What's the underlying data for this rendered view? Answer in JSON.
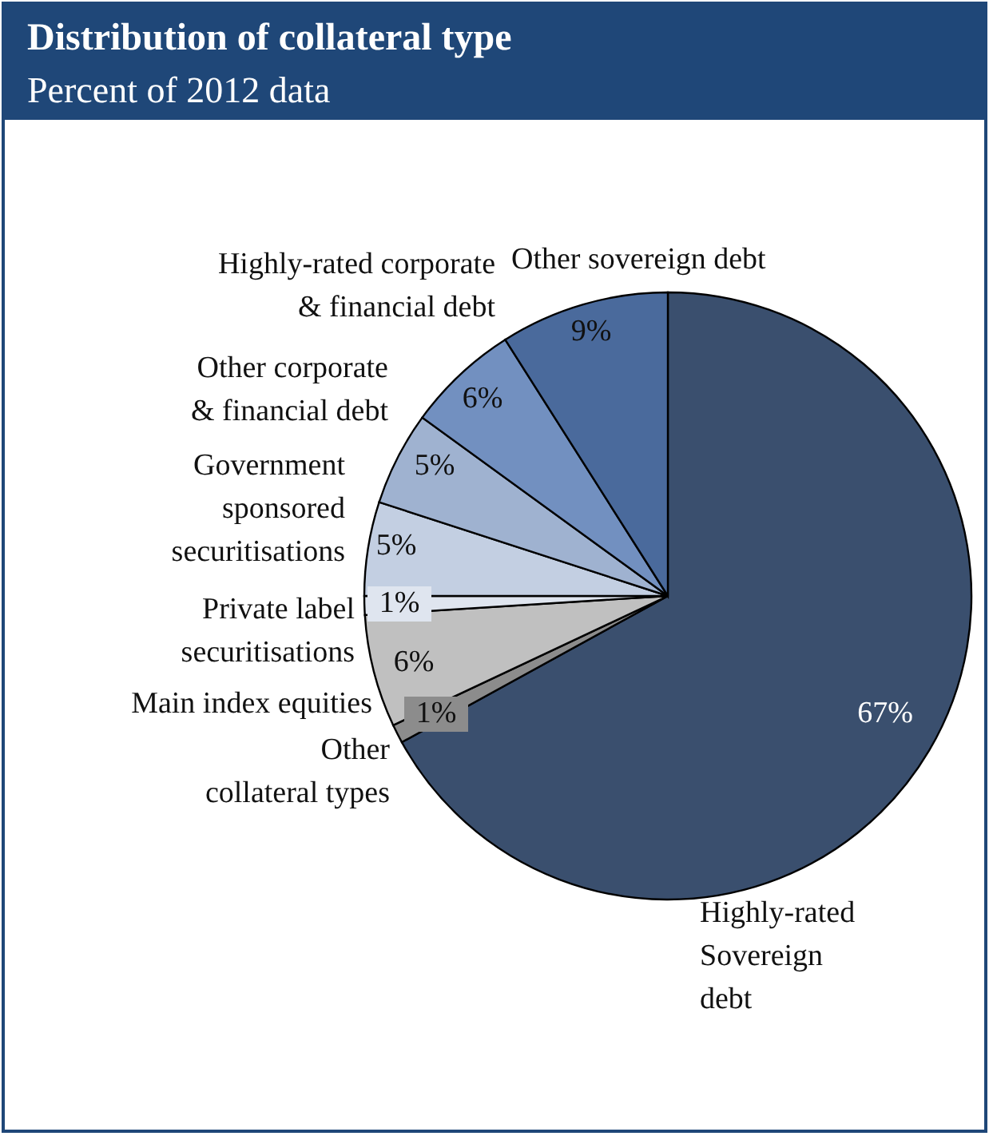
{
  "chart_data": {
    "type": "pie",
    "title": "Distribution of collateral type",
    "subtitle": "Percent of 2012 data",
    "categories": [
      "Highly-rated Sovereign debt",
      "Other collateral types",
      "Main index equities",
      "Private label securitisations",
      "Government sponsored securitisations",
      "Other corporate & financial debt",
      "Highly-rated corporate & financial debt",
      "Other sovereign debt"
    ],
    "values": [
      67,
      1,
      6,
      1,
      5,
      5,
      6,
      9
    ],
    "value_labels": [
      "67%",
      "1%",
      "6%",
      "1%",
      "5%",
      "5%",
      "6%",
      "9%"
    ],
    "colors": [
      "#3a4f6e",
      "#8c8c8c",
      "#c0c0c0",
      "#dfe5ef",
      "#c3cfe2",
      "#9fb2d0",
      "#7290c0",
      "#4a6a9c"
    ]
  }
}
